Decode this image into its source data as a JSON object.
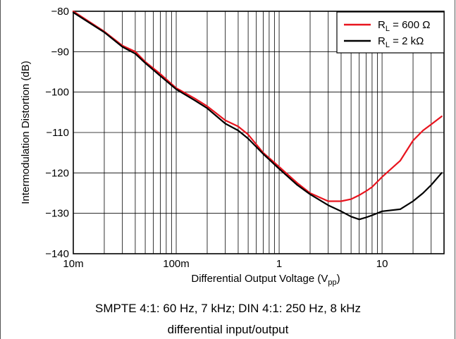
{
  "chart_data": {
    "type": "line",
    "xlabel": "Differential Output Voltage (V",
    "xlabel_sub": "pp",
    "xlabel_close": ")",
    "ylabel": "Intermodulation Distortion (dB)",
    "x_scale": "log",
    "xlim": [
      0.01,
      40
    ],
    "ylim": [
      -140,
      -80
    ],
    "x_ticks": [
      {
        "value": 0.01,
        "label": "10m"
      },
      {
        "value": 0.1,
        "label": "100m"
      },
      {
        "value": 1,
        "label": "1"
      },
      {
        "value": 10,
        "label": "10"
      }
    ],
    "y_ticks": [
      {
        "value": -80,
        "label": "-80"
      },
      {
        "value": -90,
        "label": "-90"
      },
      {
        "value": -100,
        "label": "-100"
      },
      {
        "value": -110,
        "label": "-110"
      },
      {
        "value": -120,
        "label": "-120"
      },
      {
        "value": -130,
        "label": "-130"
      },
      {
        "value": -140,
        "label": "-140"
      }
    ],
    "grid": true,
    "legend_position": "top-right",
    "series": [
      {
        "name": "R",
        "name_sub": "L",
        "name_suffix": " = 600 Ω",
        "color": "#e8141e",
        "points": [
          [
            0.01,
            -80
          ],
          [
            0.02,
            -85
          ],
          [
            0.03,
            -88.5
          ],
          [
            0.04,
            -90
          ],
          [
            0.05,
            -92.5
          ],
          [
            0.07,
            -95.5
          ],
          [
            0.1,
            -99
          ],
          [
            0.15,
            -101.5
          ],
          [
            0.2,
            -103.5
          ],
          [
            0.3,
            -107
          ],
          [
            0.4,
            -108.5
          ],
          [
            0.5,
            -110.5
          ],
          [
            0.7,
            -115
          ],
          [
            1,
            -118.5
          ],
          [
            1.5,
            -122.5
          ],
          [
            2,
            -125
          ],
          [
            3,
            -127
          ],
          [
            4,
            -127
          ],
          [
            5,
            -126.5
          ],
          [
            6,
            -125.5
          ],
          [
            7,
            -124.5
          ],
          [
            8,
            -123.5
          ],
          [
            10,
            -121
          ],
          [
            15,
            -117
          ],
          [
            20,
            -112
          ],
          [
            25,
            -109.5
          ],
          [
            30,
            -108
          ],
          [
            38,
            -106
          ]
        ]
      },
      {
        "name": "R",
        "name_sub": "L",
        "name_suffix": " = 2 kΩ",
        "color": "#000000",
        "points": [
          [
            0.01,
            -80.3
          ],
          [
            0.02,
            -85.2
          ],
          [
            0.03,
            -88.8
          ],
          [
            0.04,
            -90.5
          ],
          [
            0.05,
            -92.8
          ],
          [
            0.07,
            -96
          ],
          [
            0.1,
            -99.3
          ],
          [
            0.15,
            -102
          ],
          [
            0.2,
            -104
          ],
          [
            0.3,
            -107.8
          ],
          [
            0.4,
            -109.5
          ],
          [
            0.5,
            -111.5
          ],
          [
            0.7,
            -115.3
          ],
          [
            1,
            -119
          ],
          [
            1.5,
            -123
          ],
          [
            2,
            -125.3
          ],
          [
            3,
            -128
          ],
          [
            4,
            -129.5
          ],
          [
            5,
            -130.8
          ],
          [
            6,
            -131.5
          ],
          [
            7,
            -131
          ],
          [
            8,
            -130.5
          ],
          [
            10,
            -129.5
          ],
          [
            15,
            -129
          ],
          [
            20,
            -127
          ],
          [
            25,
            -125
          ],
          [
            30,
            -123
          ],
          [
            38,
            -120
          ]
        ]
      }
    ]
  },
  "caption": {
    "line1": "SMPTE 4:1: 60 Hz, 7 kHz; DIN 4:1: 250 Hz, 8 kHz",
    "line2": "differential input/output"
  }
}
